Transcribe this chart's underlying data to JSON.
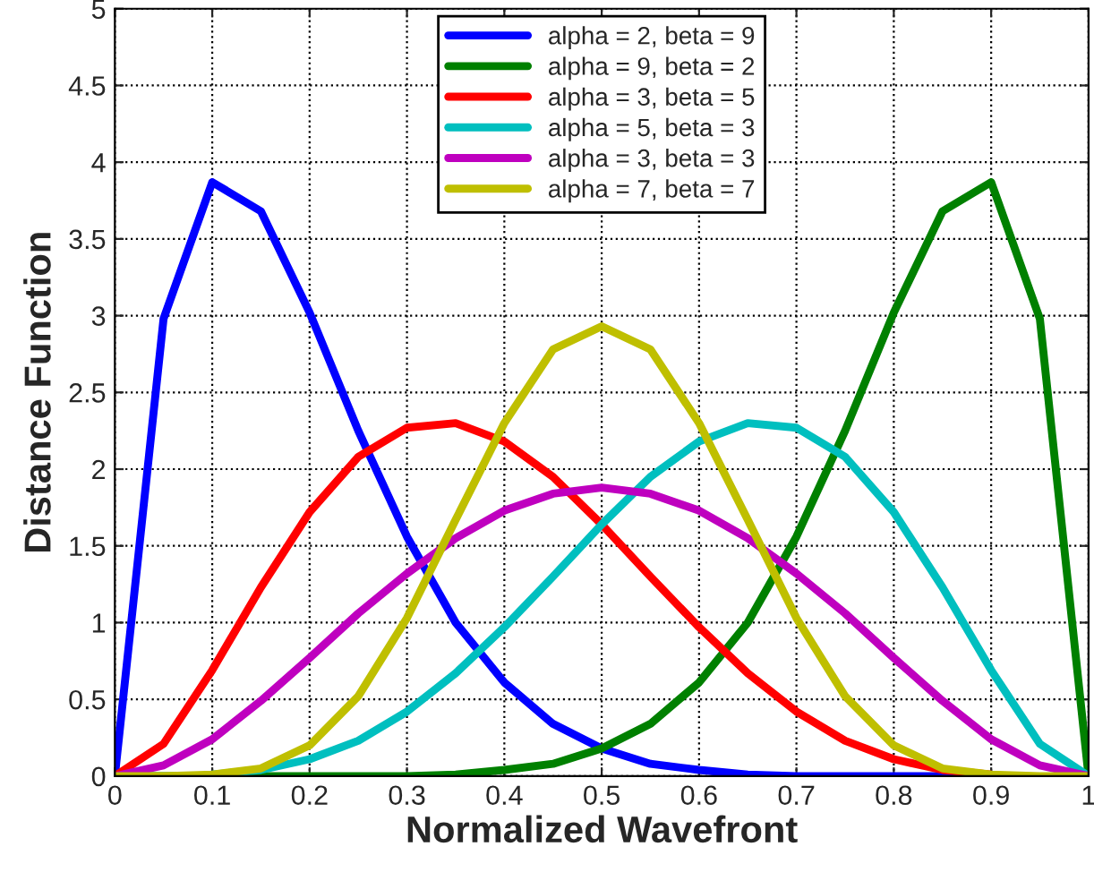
{
  "chart_data": {
    "type": "line",
    "xlabel": "Normalized Wavefront",
    "ylabel": "Distance Function",
    "x": [
      0,
      0.05,
      0.1,
      0.15,
      0.2,
      0.25,
      0.3,
      0.35,
      0.4,
      0.45,
      0.5,
      0.55,
      0.6,
      0.65,
      0.7,
      0.75,
      0.8,
      0.85,
      0.9,
      0.95,
      1
    ],
    "series": [
      {
        "name": "alpha = 2, beta = 9",
        "color": "#0000ff",
        "values": [
          0,
          2.98,
          3.87,
          3.68,
          3.02,
          2.25,
          1.56,
          1.0,
          0.61,
          0.34,
          0.18,
          0.08,
          0.04,
          0.01,
          0,
          0,
          0,
          0,
          0,
          null,
          null
        ]
      },
      {
        "name": "alpha = 9, beta = 2",
        "color": "#008000",
        "values": [
          0,
          0,
          0,
          0,
          0,
          0,
          0,
          0.01,
          0.04,
          0.08,
          0.18,
          0.34,
          0.61,
          1.0,
          1.56,
          2.25,
          3.02,
          3.68,
          3.87,
          2.98,
          0
        ]
      },
      {
        "name": "alpha = 3, beta = 5",
        "color": "#ff0000",
        "values": [
          0,
          0.21,
          0.69,
          1.23,
          1.72,
          2.08,
          2.27,
          2.3,
          2.18,
          1.95,
          1.64,
          1.3,
          0.97,
          0.67,
          0.42,
          0.23,
          0.11,
          0.04,
          0.01,
          null,
          null
        ]
      },
      {
        "name": "alpha = 5, beta = 3",
        "color": "#00bfbf",
        "values": [
          null,
          null,
          0.01,
          0.04,
          0.11,
          0.23,
          0.42,
          0.67,
          0.97,
          1.3,
          1.64,
          1.95,
          2.18,
          2.3,
          2.27,
          2.08,
          1.72,
          1.23,
          0.69,
          0.21,
          0
        ]
      },
      {
        "name": "alpha = 3, beta = 3",
        "color": "#bf00bf",
        "values": [
          0,
          0.07,
          0.24,
          0.49,
          0.77,
          1.06,
          1.32,
          1.55,
          1.73,
          1.84,
          1.88,
          1.84,
          1.73,
          1.55,
          1.32,
          1.06,
          0.77,
          0.49,
          0.24,
          0.07,
          0
        ]
      },
      {
        "name": "alpha = 7, beta = 7",
        "color": "#bfbf00",
        "values": [
          0,
          0,
          0.01,
          0.05,
          0.2,
          0.52,
          1.03,
          1.67,
          2.3,
          2.78,
          2.93,
          2.78,
          2.3,
          1.67,
          1.03,
          0.52,
          0.2,
          0.05,
          0.01,
          0,
          0
        ]
      }
    ],
    "xlim": [
      0,
      1
    ],
    "xticks": [
      0,
      0.1,
      0.2,
      0.3,
      0.4,
      0.5,
      0.6,
      0.7,
      0.8,
      0.9,
      1
    ],
    "ylim": [
      0,
      5
    ],
    "yticks": [
      0,
      0.5,
      1,
      1.5,
      2,
      2.5,
      3,
      3.5,
      4,
      4.5,
      5
    ],
    "grid": true,
    "legend": "top",
    "marker": "none",
    "line_style": "solid"
  }
}
